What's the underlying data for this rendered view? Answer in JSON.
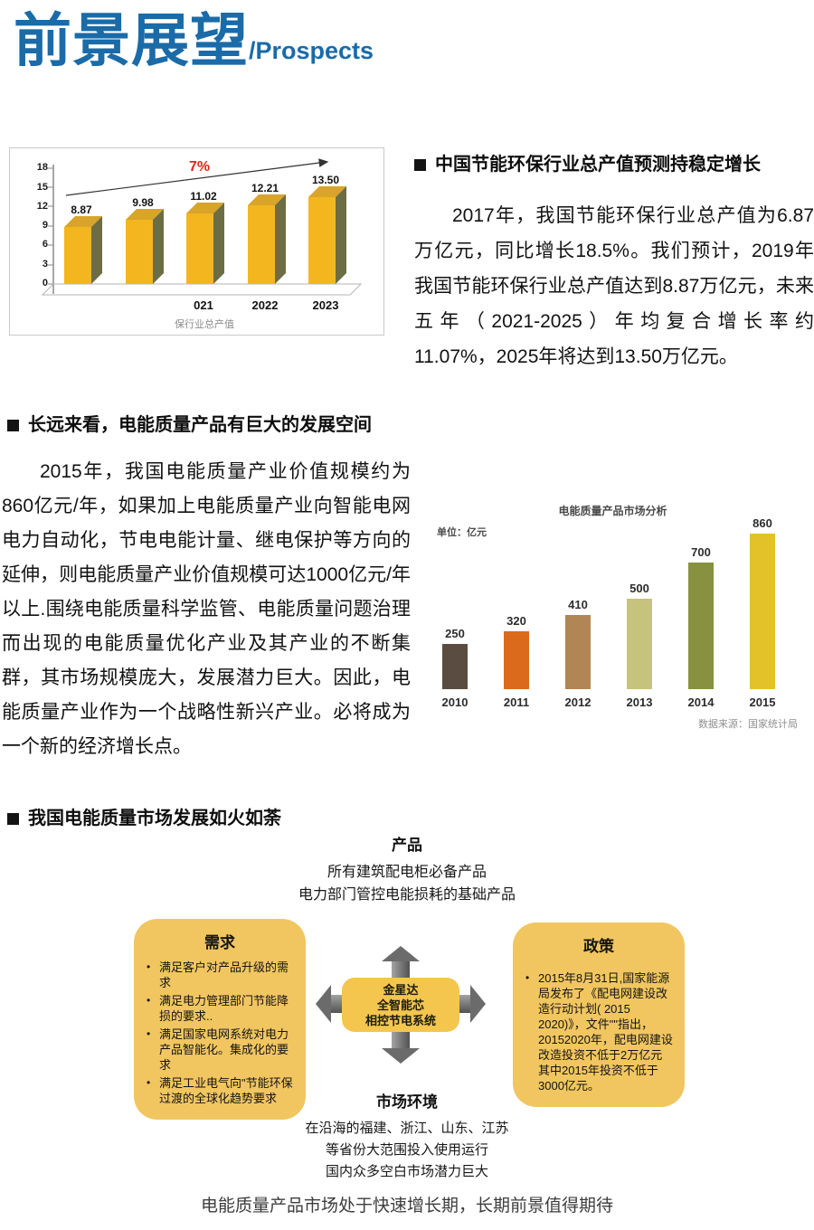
{
  "title": {
    "cn": "前景展望",
    "en": "/Prospects"
  },
  "sections": {
    "national": {
      "heading": "中国节能环保行业总产值预测持稳定增长",
      "paragraph": "2017年，我国节能环保行业总产值为6.87万亿元，同比增长18.5%。我们预计，2019年我国节能环保行业总产值达到8.87万亿元，未来五年（2021-2025）年均复合增长率约11.07%，2025年将达到13.50万亿元。"
    },
    "power_quality": {
      "heading": "长远来看，电能质量产品有巨大的发展空间",
      "paragraph": "2015年，我国电能质量产业价值规模约为860亿元/年，如果加上电能质量产业向智能电网电力自动化，节电电能计量、继电保护等方向的延伸，则电能质量产业价值规模可达1000亿元/年以上.围绕电能质量科学监管、电能质量问题治理而出现的电能质量优化产业及其产业的不断集群，其市场规模庞大，发展潜力巨大。因此，电能质量产业作为一个战略性新兴产业。必将成为一个新的经济增长点。"
    },
    "market": {
      "heading": "我国电能质量市场发展如火如荼"
    }
  },
  "chart_data": [
    {
      "type": "bar",
      "title": "保行业总产值",
      "categories": [
        "",
        "",
        "021",
        "2022",
        "2023"
      ],
      "values": [
        8.87,
        9.98,
        11.02,
        12.21,
        13.5
      ],
      "value_labels": [
        "8.87",
        "9.98",
        "11.02",
        "12.21",
        "13.50"
      ],
      "ylim": [
        0,
        18
      ],
      "yticks": [
        0,
        3,
        6,
        9,
        12,
        15,
        18
      ],
      "annotation": "7%",
      "annotation_color": "#e0251c",
      "bar_color": "#f3b61f",
      "bar_side_color": "#6d6d45",
      "style": "3d-column",
      "grid": false,
      "legend": "none"
    },
    {
      "type": "bar",
      "title": "电能质量产品市场分析",
      "unit_label": "单位：亿元",
      "categories": [
        "2010",
        "2011",
        "2012",
        "2013",
        "2014",
        "2015"
      ],
      "values": [
        250,
        320,
        410,
        500,
        700,
        860
      ],
      "colors": [
        "#5a4c40",
        "#dc6a1c",
        "#b08655",
        "#c6c37c",
        "#879140",
        "#e2c228"
      ],
      "source": "数据来源：国家统计局",
      "ylim": [
        0,
        900
      ],
      "grid": false,
      "legend": "none"
    }
  ],
  "diagram": {
    "product": {
      "title": "产品",
      "lines": [
        "所有建筑配电柜必备产品",
        "电力部门管控电能损耗的基础产品"
      ]
    },
    "demand": {
      "title": "需求",
      "bullets": [
        "满足客户对产品升级的需求",
        "满足电力管理部门节能降损的要求..",
        "满足国家电网系统对电力产品智能化。集成化的要求",
        "满足工业电气向\"节能环保过渡的全球化趋势要求"
      ]
    },
    "policy": {
      "title": "政策",
      "bullets": [
        "2015年8月31日,国家能源局发布了《配电网建设改造行动计划( 2015 2020)》，文件\"\"指出，20152020年，配电网建设改造投资不低于2万亿元其中2015年投资不低于3000亿元。"
      ]
    },
    "center": {
      "lines": [
        "金星达",
        "全智能芯",
        "相控节电系统"
      ]
    },
    "market_env": {
      "title": "市场环境",
      "lines": [
        "在沿海的福建、浙江、山东、江苏",
        "等省份大范围投入使用运行",
        "国内众多空白市场潜力巨大"
      ]
    }
  },
  "footer": "电能质量产品市场处于快速增长期，长期前景值得期待",
  "colors": {
    "accent_blue": "#1a6ba8",
    "gold": "#f3b61f",
    "box_yellow": "#f1c660"
  }
}
